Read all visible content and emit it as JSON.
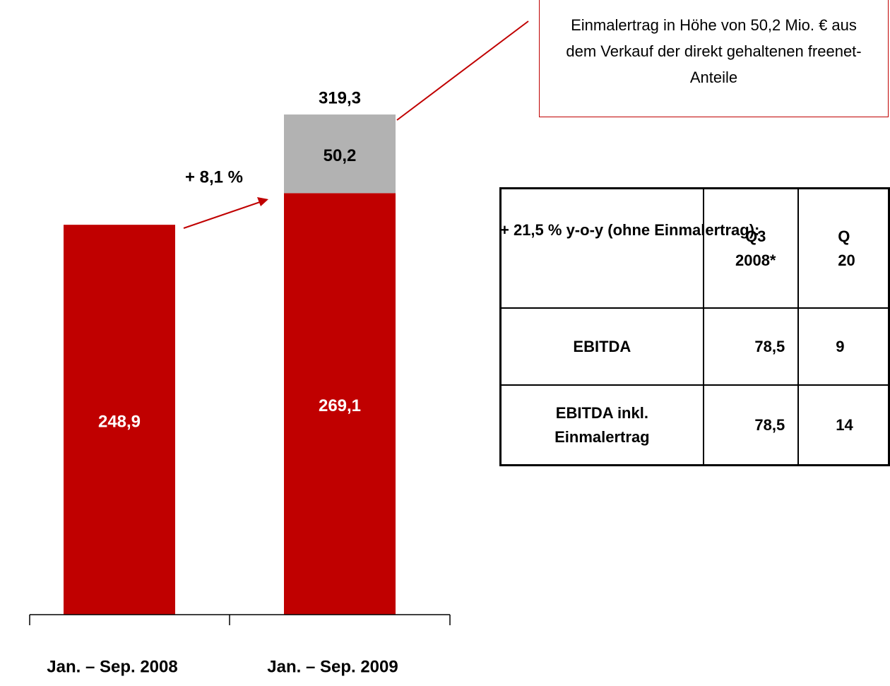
{
  "chart_data": {
    "type": "stacked_bar",
    "categories": [
      "Jan. – Sep. 2008",
      "Jan. – Sep. 2009"
    ],
    "series": [
      {
        "color": "#c00000",
        "values": [
          248.9,
          269.1
        ],
        "value_labels": [
          "248,9",
          "269,1"
        ],
        "label_color": "#ffffff"
      },
      {
        "color": "#b2b2b2",
        "values": [
          null,
          50.2
        ],
        "value_labels": [
          null,
          "50,2"
        ],
        "label_color": "#000000"
      }
    ],
    "totals": [
      null,
      319.3
    ],
    "total_labels": [
      null,
      "319,3"
    ],
    "ylim": [
      0,
      350
    ],
    "growth_label": "+ 8,1 %",
    "callout": "Einmalertrag in Höhe von 50,2 Mio. € aus dem Verkauf der direkt gehaltenen freenet-Anteile"
  },
  "table": {
    "heading": "+ 21,5 % y-o-y (ohne Einmalertrag):",
    "columns": [
      "Q3 2008*",
      "Q 20"
    ],
    "rows": [
      [
        "EBITDA",
        "78,5",
        "9"
      ],
      [
        "EBITDA inkl. Einmalertrag",
        "78,5",
        "14"
      ]
    ]
  }
}
